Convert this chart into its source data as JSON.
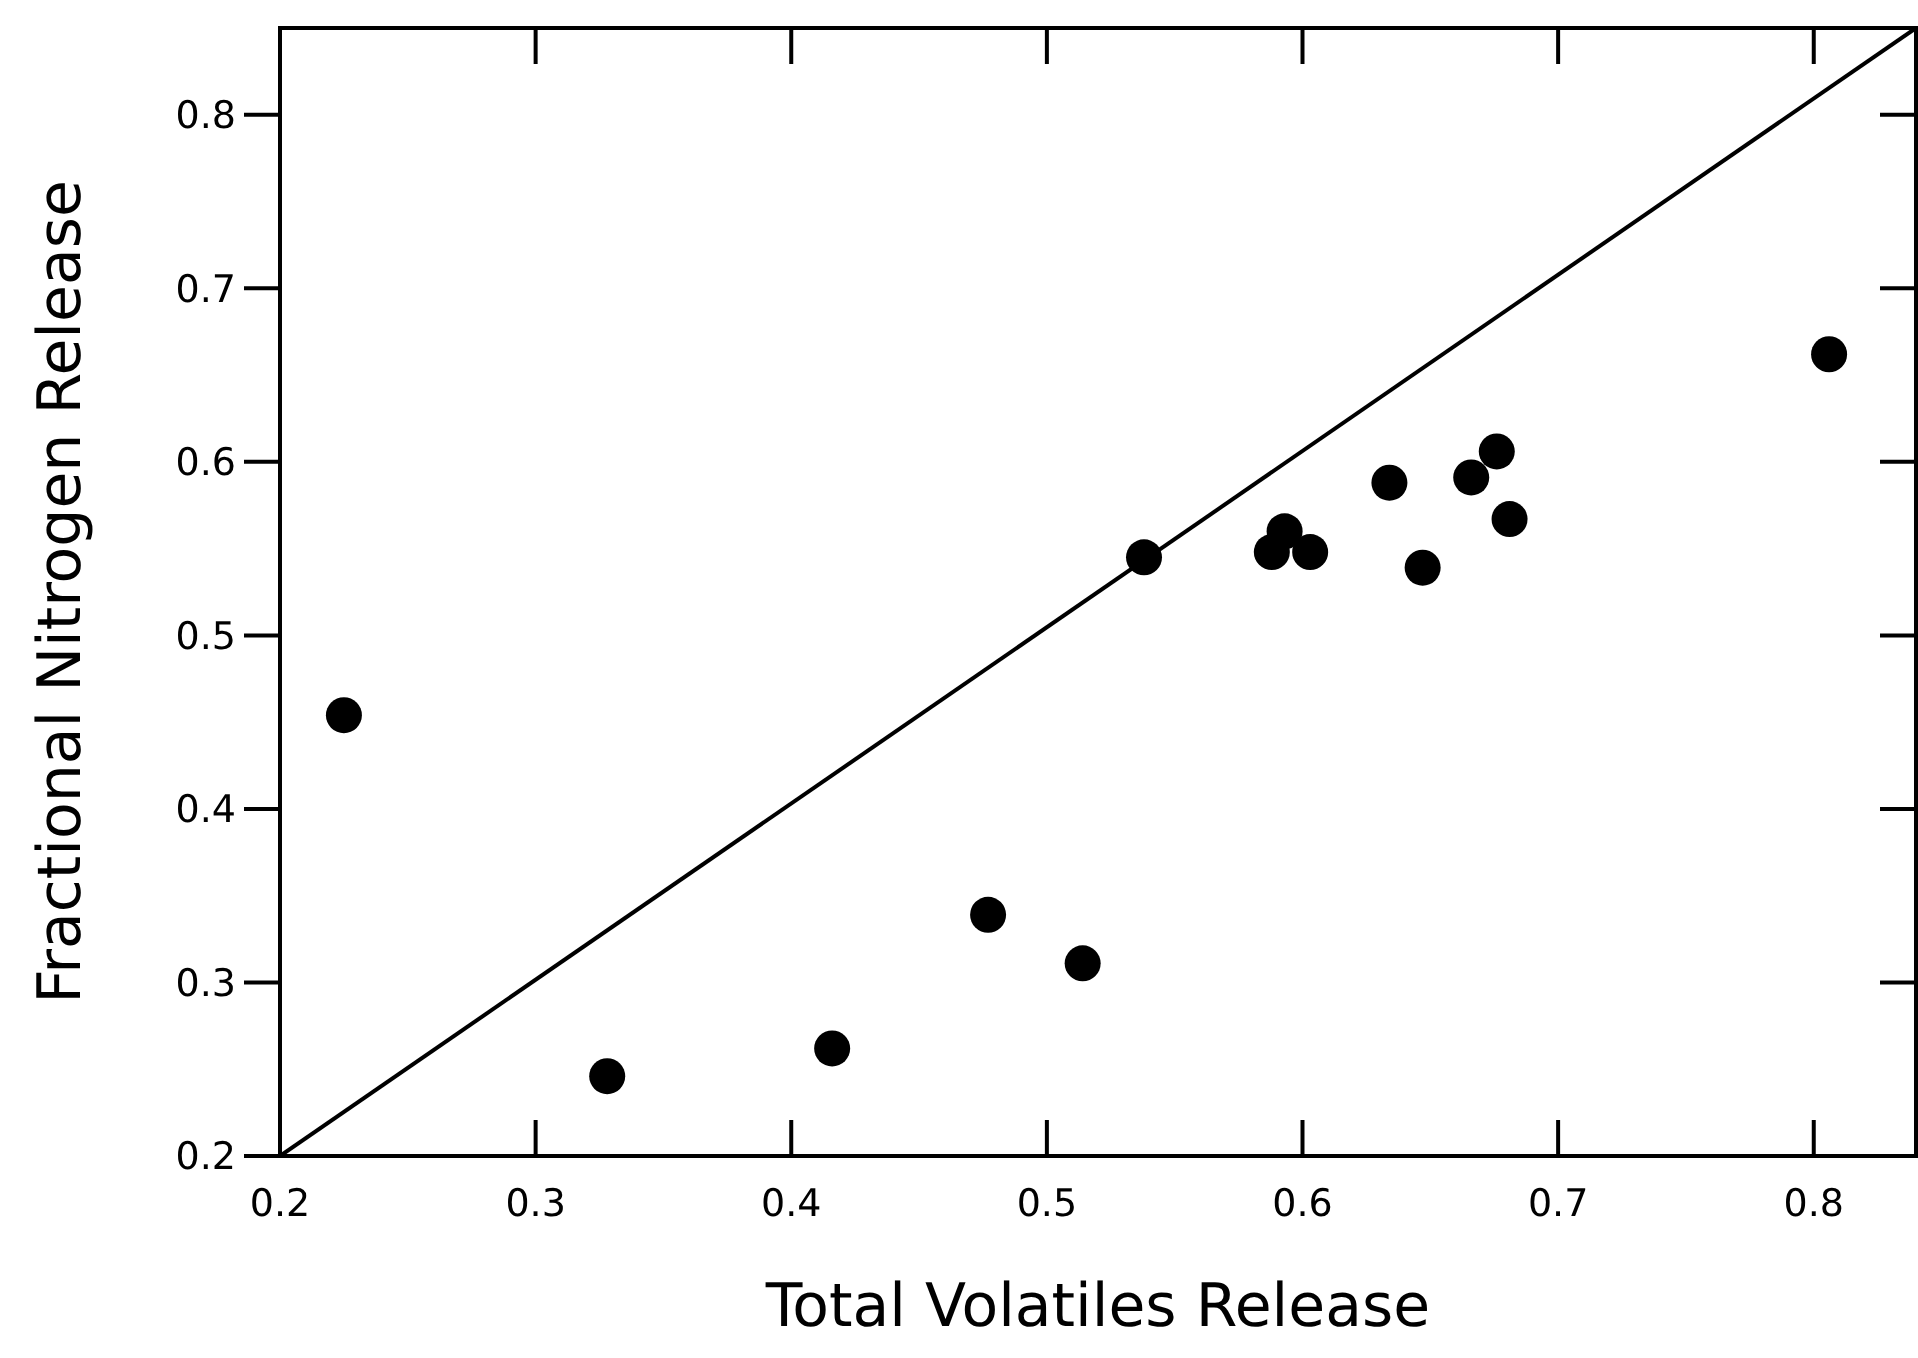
{
  "chart_data": {
    "type": "scatter",
    "xlabel": "Total Volatiles Release",
    "ylabel": "Fractional Nitrogen Release",
    "xlim": [
      0.2,
      0.84
    ],
    "ylim": [
      0.2,
      0.85
    ],
    "xticks": [
      0.2,
      0.3,
      0.4,
      0.5,
      0.6,
      0.7,
      0.8
    ],
    "yticks": [
      0.2,
      0.3,
      0.4,
      0.5,
      0.6,
      0.7,
      0.8
    ],
    "grid": false,
    "series": [
      {
        "color": "#000000",
        "marker": "circle",
        "x": [
          0.538,
          0.588,
          0.593,
          0.603,
          0.634,
          0.647,
          0.666,
          0.676,
          0.681,
          0.806,
          0.225,
          0.328,
          0.416,
          0.477,
          0.514
        ],
        "values": [
          0.545,
          0.548,
          0.56,
          0.548,
          0.588,
          0.539,
          0.591,
          0.606,
          0.567,
          0.662,
          0.454,
          0.246,
          0.262,
          0.339,
          0.311
        ]
      },
      {
        "type": "line",
        "color": "#000000",
        "x": [
          0.2,
          0.84
        ],
        "values": [
          0.2,
          0.85
        ],
        "marker": "none"
      }
    ]
  }
}
